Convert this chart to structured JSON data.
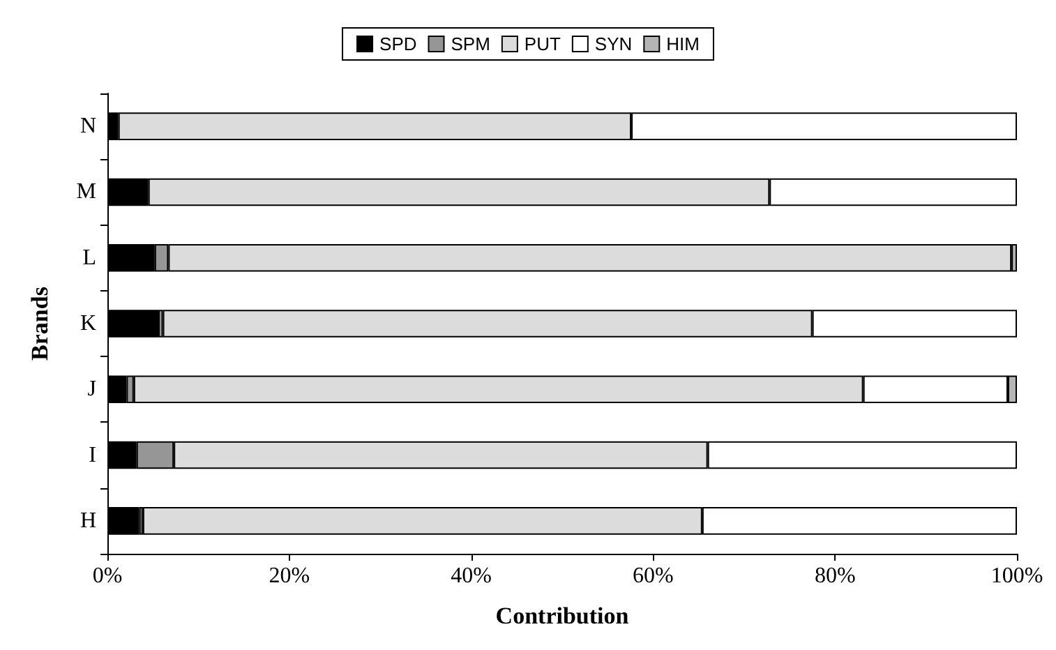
{
  "chart_data": {
    "type": "bar",
    "orientation": "horizontal",
    "stacked": true,
    "xlabel": "Contribution",
    "ylabel": "Brands",
    "categories": [
      "N",
      "M",
      "L",
      "K",
      "J",
      "I",
      "H"
    ],
    "series": [
      {
        "name": "SPD",
        "color": "#000000",
        "values": [
          1.2,
          4.5,
          5.2,
          5.6,
          2.1,
          3.2,
          3.5
        ]
      },
      {
        "name": "SPM",
        "color": "#969696",
        "values": [
          null,
          null,
          1.5,
          0.5,
          0.8,
          4.1,
          0.4
        ]
      },
      {
        "name": "PUT",
        "color": "#dcdcdc",
        "values": [
          56.4,
          68.3,
          92.7,
          71.4,
          80.2,
          58.7,
          61.5
        ]
      },
      {
        "name": "SYN",
        "color": "#ffffff",
        "values": [
          42.4,
          27.2,
          null,
          22.5,
          15.9,
          34.0,
          34.6
        ]
      },
      {
        "name": "HIM",
        "color": "#b4b4b4",
        "values": [
          null,
          null,
          0.6,
          null,
          1.0,
          null,
          null
        ]
      }
    ],
    "xlim": [
      0,
      100
    ],
    "xticks": [
      {
        "value": 0,
        "label": "0%"
      },
      {
        "value": 20,
        "label": "20%"
      },
      {
        "value": 40,
        "label": "40%"
      },
      {
        "value": 60,
        "label": "60%"
      },
      {
        "value": 80,
        "label": "80%"
      },
      {
        "value": 100,
        "label": "100%"
      }
    ],
    "grid": false,
    "legend": "top"
  }
}
